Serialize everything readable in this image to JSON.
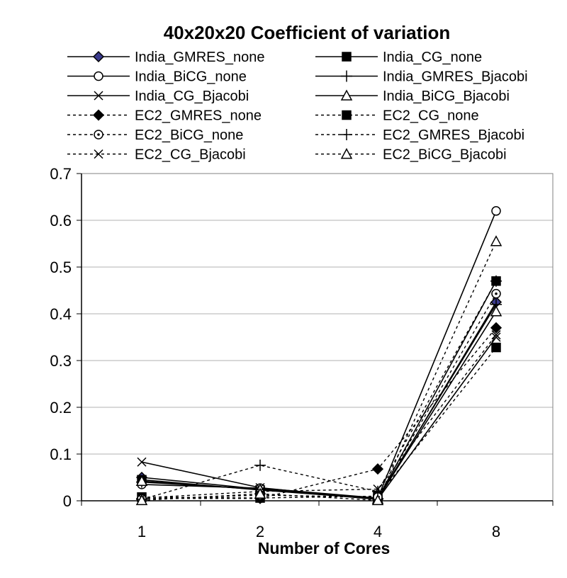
{
  "chart_data": {
    "type": "line",
    "title": "40x20x20 Coefficient of variation",
    "xlabel": "Number of Cores",
    "ylabel": "",
    "categories": [
      "1",
      "2",
      "4",
      "8"
    ],
    "ylim": [
      0,
      0.7
    ],
    "yticks": [
      0,
      0.1,
      0.2,
      0.3,
      0.4,
      0.5,
      0.6,
      0.7
    ],
    "ytick_labels": [
      "0",
      "0.1",
      "0.2",
      "0.3",
      "0.4",
      "0.5",
      "0.6",
      "0.7"
    ],
    "grid": true,
    "legend_position": "top",
    "series": [
      {
        "name": "India_GMRES_none",
        "marker": "diamond-filled",
        "style": "solid",
        "color": "#000000",
        "marker_color": "#3a3a8c",
        "values": [
          0.05,
          0.025,
          0.003,
          0.425
        ]
      },
      {
        "name": "India_CG_none",
        "marker": "square-filled",
        "style": "solid",
        "color": "#000000",
        "values": [
          0.045,
          0.023,
          0.004,
          0.47
        ]
      },
      {
        "name": "India_BiCG_none",
        "marker": "circle-open",
        "style": "solid",
        "color": "#000000",
        "values": [
          0.035,
          0.027,
          0.006,
          0.62
        ]
      },
      {
        "name": "India_GMRES_Bjacobi",
        "marker": "plus",
        "style": "solid",
        "color": "#000000",
        "values": [
          0.04,
          0.025,
          0.005,
          0.42
        ]
      },
      {
        "name": "India_CG_Bjacobi",
        "marker": "x",
        "style": "solid",
        "color": "#000000",
        "values": [
          0.083,
          0.028,
          0.003,
          0.35
        ]
      },
      {
        "name": "India_BiCG_Bjacobi",
        "marker": "triangle-open",
        "style": "solid",
        "color": "#000000",
        "values": [
          0.042,
          0.024,
          0.004,
          0.405
        ]
      },
      {
        "name": "EC2_GMRES_none",
        "marker": "diamond-filled",
        "style": "dashed",
        "color": "#000000",
        "values": [
          0.005,
          0.005,
          0.068,
          0.37
        ]
      },
      {
        "name": "EC2_CG_none",
        "marker": "square-filled",
        "style": "dashed",
        "color": "#000000",
        "values": [
          0.008,
          0.006,
          0.01,
          0.328
        ]
      },
      {
        "name": "EC2_BiCG_none",
        "marker": "circle-dot",
        "style": "dashed",
        "color": "#000000",
        "values": [
          0.004,
          0.012,
          0.008,
          0.443
        ]
      },
      {
        "name": "EC2_GMRES_Bjacobi",
        "marker": "plus",
        "style": "dashed",
        "color": "#000000",
        "values": [
          0.003,
          0.076,
          0.02,
          0.47
        ]
      },
      {
        "name": "EC2_CG_Bjacobi",
        "marker": "x",
        "style": "dashed",
        "color": "#000000",
        "values": [
          0.006,
          0.02,
          0.025,
          0.355
        ]
      },
      {
        "name": "EC2_BiCG_Bjacobi",
        "marker": "triangle-open",
        "style": "dashed",
        "color": "#000000",
        "values": [
          0.001,
          0.015,
          0.001,
          0.555
        ]
      }
    ]
  }
}
